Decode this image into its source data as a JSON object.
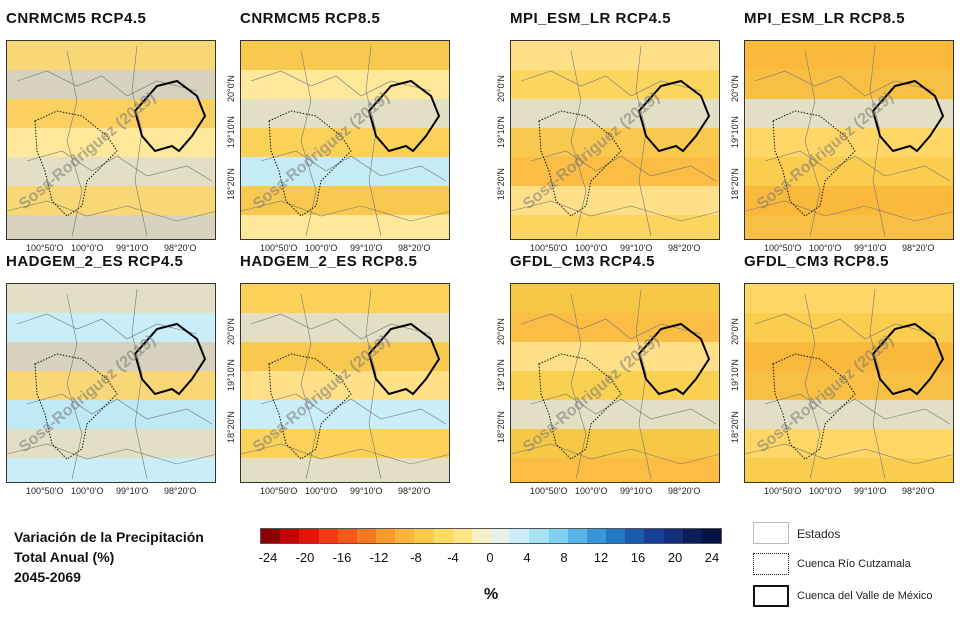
{
  "panels": [
    {
      "title": "CNRMCM5 RCP4.5",
      "palette": [
        "#f9d776",
        "#fbd060",
        "#e3dfc4",
        "#d7d2bd",
        "#ffe89a"
      ]
    },
    {
      "title": "CNRMCM5 RCP8.5",
      "palette": [
        "#fbd15a",
        "#f9c84e",
        "#e3dfc4",
        "#c6ecf3",
        "#ffe89a"
      ]
    },
    {
      "title": "MPI_ESM_LR RCP4.5",
      "palette": [
        "#fbd55e",
        "#f9c84e",
        "#ffe089",
        "#e3dfc4",
        "#fbbd43"
      ]
    },
    {
      "title": "MPI_ESM_LR RCP8.5",
      "palette": [
        "#fbcd4e",
        "#f7c045",
        "#ffd766",
        "#fbb93c",
        "#e3dfc4"
      ]
    },
    {
      "title": "HADGEM_2_ES RCP4.5",
      "palette": [
        "#d7d2bd",
        "#bfe9f4",
        "#c9eef7",
        "#f9d776",
        "#e3dfc4"
      ]
    },
    {
      "title": "HADGEM_2_ES RCP8.5",
      "palette": [
        "#fbd15a",
        "#f9c84e",
        "#c9eef7",
        "#e3dfc4",
        "#ffe089"
      ]
    },
    {
      "title": "GFDL_CM3 RCP4.5",
      "palette": [
        "#f9d04f",
        "#f7c845",
        "#ffe089",
        "#e3dfc4",
        "#fbbd43"
      ]
    },
    {
      "title": "GFDL_CM3 RCP8.5",
      "palette": [
        "#fbcd4e",
        "#f7c045",
        "#ffd766",
        "#fbb93c",
        "#e3dfc4"
      ]
    }
  ],
  "axes": {
    "y_ticks": [
      "20°0'N",
      "19°10'N",
      "18°20'N"
    ],
    "x_ticks": [
      "100°50'O",
      "100°0'O",
      "99°10'O",
      "98°20'O"
    ]
  },
  "watermark": "Sosa-Rodriguez (2019)",
  "legend": {
    "title_lines": [
      "Variación de la Precipitación",
      "Total Anual (%)",
      "2045-2069"
    ],
    "unit": "%",
    "colorbar_labels": [
      "-24",
      "-20",
      "-16",
      "-12",
      "-8",
      "-4",
      "0",
      "4",
      "8",
      "12",
      "16",
      "20",
      "24"
    ],
    "colorbar_colors": [
      "#8b0000",
      "#c40000",
      "#e4140a",
      "#f33a12",
      "#f55a1a",
      "#f77a22",
      "#f9982c",
      "#fbb43a",
      "#fccb4a",
      "#fdda62",
      "#fee483",
      "#f6efc6",
      "#e6f2e8",
      "#c9eef7",
      "#a6e2f4",
      "#7fcfee",
      "#57b6e6",
      "#3598d8",
      "#2178c6",
      "#1a5ab0",
      "#183f98",
      "#13307a",
      "#0b1e5c",
      "#051244"
    ],
    "keys": [
      {
        "label": "Estados"
      },
      {
        "label": "Cuenca Río Cutzamala"
      },
      {
        "label": "Cuenca del Valle de México"
      }
    ]
  }
}
